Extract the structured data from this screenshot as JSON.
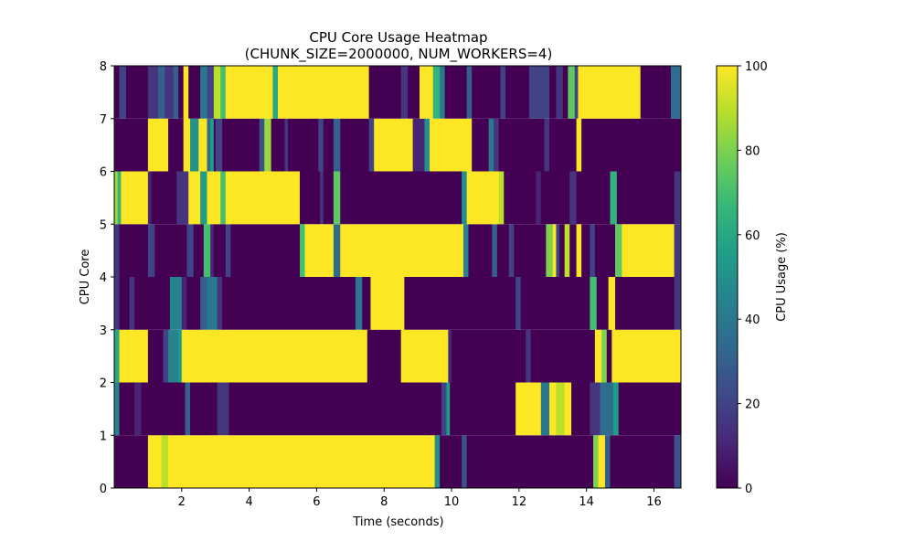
{
  "chart_data": {
    "type": "heatmap",
    "title": "CPU Core Usage Heatmap",
    "subtitle": "(CHUNK_SIZE=2000000, NUM_WORKERS=4)",
    "xlabel": "Time (seconds)",
    "ylabel": "CPU Core",
    "xlim": [
      0.0,
      16.8
    ],
    "ylim": [
      0,
      8
    ],
    "xticks": [
      2,
      4,
      6,
      8,
      10,
      12,
      14,
      16
    ],
    "yticks": [
      0,
      1,
      2,
      3,
      4,
      5,
      6,
      7,
      8
    ],
    "grid": false,
    "colormap": "viridis",
    "colorbar": {
      "label": "CPU Usage (%)",
      "range": [
        0,
        100
      ],
      "ticks": [
        0,
        20,
        40,
        60,
        80,
        100
      ]
    },
    "cores": [
      {
        "core": 0,
        "segments": [
          [
            0.0,
            1.0,
            0
          ],
          [
            1.0,
            1.4,
            100
          ],
          [
            1.4,
            1.6,
            90
          ],
          [
            1.6,
            9.5,
            100
          ],
          [
            9.5,
            9.65,
            50
          ],
          [
            9.65,
            10.3,
            0
          ],
          [
            10.3,
            10.45,
            25
          ],
          [
            10.45,
            14.2,
            0
          ],
          [
            14.2,
            14.35,
            80
          ],
          [
            14.35,
            14.55,
            100
          ],
          [
            14.55,
            14.7,
            30
          ],
          [
            14.7,
            16.6,
            0
          ],
          [
            16.6,
            16.8,
            25
          ]
        ]
      },
      {
        "core": 1,
        "segments": [
          [
            0.0,
            0.15,
            45
          ],
          [
            0.15,
            0.6,
            0
          ],
          [
            0.6,
            0.8,
            10
          ],
          [
            0.8,
            2.1,
            0
          ],
          [
            2.1,
            2.25,
            30
          ],
          [
            2.25,
            3.05,
            0
          ],
          [
            3.05,
            3.4,
            15
          ],
          [
            3.4,
            9.7,
            0
          ],
          [
            9.7,
            9.85,
            20
          ],
          [
            9.85,
            9.95,
            55
          ],
          [
            9.95,
            11.9,
            0
          ],
          [
            11.9,
            12.65,
            100
          ],
          [
            12.65,
            12.9,
            40
          ],
          [
            12.9,
            13.1,
            100
          ],
          [
            13.1,
            13.35,
            90
          ],
          [
            13.35,
            13.55,
            100
          ],
          [
            13.55,
            14.1,
            0
          ],
          [
            14.1,
            14.4,
            15
          ],
          [
            14.4,
            14.8,
            35
          ],
          [
            14.8,
            14.95,
            55
          ],
          [
            14.95,
            16.8,
            0
          ]
        ]
      },
      {
        "core": 2,
        "segments": [
          [
            0.0,
            0.15,
            60
          ],
          [
            0.15,
            1.0,
            100
          ],
          [
            1.0,
            1.45,
            0
          ],
          [
            1.45,
            1.6,
            20
          ],
          [
            1.6,
            1.9,
            45
          ],
          [
            1.9,
            2.0,
            55
          ],
          [
            2.0,
            7.5,
            100
          ],
          [
            7.5,
            8.5,
            0
          ],
          [
            8.5,
            9.9,
            100
          ],
          [
            9.9,
            10.0,
            10
          ],
          [
            10.0,
            12.2,
            0
          ],
          [
            12.2,
            12.35,
            15
          ],
          [
            12.35,
            14.25,
            0
          ],
          [
            14.25,
            14.45,
            100
          ],
          [
            14.45,
            14.6,
            80
          ],
          [
            14.6,
            14.75,
            0
          ],
          [
            14.75,
            16.8,
            100
          ]
        ]
      },
      {
        "core": 3,
        "segments": [
          [
            0.0,
            0.15,
            15
          ],
          [
            0.15,
            0.45,
            0
          ],
          [
            0.45,
            0.6,
            15
          ],
          [
            0.6,
            1.65,
            0
          ],
          [
            1.65,
            2.0,
            45
          ],
          [
            2.0,
            2.15,
            10
          ],
          [
            2.15,
            2.55,
            0
          ],
          [
            2.55,
            2.75,
            30
          ],
          [
            2.75,
            3.05,
            40
          ],
          [
            3.05,
            3.2,
            15
          ],
          [
            3.2,
            7.15,
            0
          ],
          [
            7.15,
            7.35,
            40
          ],
          [
            7.35,
            7.6,
            0
          ],
          [
            7.6,
            8.6,
            100
          ],
          [
            8.6,
            11.9,
            0
          ],
          [
            11.9,
            12.05,
            20
          ],
          [
            12.05,
            14.1,
            0
          ],
          [
            14.1,
            14.3,
            70
          ],
          [
            14.3,
            14.65,
            0
          ],
          [
            14.65,
            14.85,
            100
          ],
          [
            14.85,
            16.6,
            0
          ],
          [
            16.6,
            16.8,
            15
          ]
        ]
      },
      {
        "core": 4,
        "segments": [
          [
            0.0,
            0.15,
            15
          ],
          [
            0.15,
            1.0,
            0
          ],
          [
            1.0,
            1.2,
            20
          ],
          [
            1.2,
            2.15,
            0
          ],
          [
            2.15,
            2.35,
            20
          ],
          [
            2.35,
            2.65,
            0
          ],
          [
            2.65,
            2.85,
            70
          ],
          [
            2.85,
            2.95,
            10
          ],
          [
            2.95,
            3.3,
            0
          ],
          [
            3.3,
            3.45,
            20
          ],
          [
            3.45,
            5.5,
            0
          ],
          [
            5.5,
            5.65,
            70
          ],
          [
            5.65,
            6.5,
            100
          ],
          [
            6.5,
            6.7,
            35
          ],
          [
            6.7,
            10.35,
            100
          ],
          [
            10.35,
            10.5,
            45
          ],
          [
            10.5,
            11.2,
            0
          ],
          [
            11.2,
            11.35,
            30
          ],
          [
            11.35,
            11.7,
            0
          ],
          [
            11.7,
            11.85,
            20
          ],
          [
            11.85,
            12.8,
            0
          ],
          [
            12.8,
            13.0,
            80
          ],
          [
            13.0,
            13.1,
            100
          ],
          [
            13.1,
            13.2,
            20
          ],
          [
            13.2,
            13.35,
            0
          ],
          [
            13.35,
            13.5,
            90
          ],
          [
            13.5,
            13.7,
            0
          ],
          [
            13.7,
            13.85,
            100
          ],
          [
            13.85,
            14.1,
            0
          ],
          [
            14.1,
            14.25,
            20
          ],
          [
            14.25,
            14.85,
            0
          ],
          [
            14.85,
            15.05,
            75
          ],
          [
            15.05,
            16.6,
            100
          ],
          [
            16.6,
            16.8,
            15
          ]
        ]
      },
      {
        "core": 5,
        "segments": [
          [
            0.0,
            0.1,
            85
          ],
          [
            0.1,
            0.2,
            65
          ],
          [
            0.2,
            1.0,
            100
          ],
          [
            1.0,
            1.1,
            10
          ],
          [
            1.1,
            1.85,
            0
          ],
          [
            1.85,
            2.2,
            15
          ],
          [
            2.2,
            2.55,
            100
          ],
          [
            2.55,
            2.75,
            55
          ],
          [
            2.75,
            3.15,
            100
          ],
          [
            3.15,
            3.3,
            70
          ],
          [
            3.3,
            5.5,
            100
          ],
          [
            5.5,
            6.1,
            0
          ],
          [
            6.1,
            6.2,
            15
          ],
          [
            6.2,
            6.5,
            0
          ],
          [
            6.5,
            6.7,
            75
          ],
          [
            6.7,
            10.3,
            0
          ],
          [
            10.3,
            10.45,
            50
          ],
          [
            10.45,
            11.4,
            100
          ],
          [
            11.4,
            11.55,
            90
          ],
          [
            11.55,
            12.5,
            0
          ],
          [
            12.5,
            12.65,
            10
          ],
          [
            12.65,
            13.5,
            0
          ],
          [
            13.5,
            13.7,
            15
          ],
          [
            13.7,
            14.7,
            0
          ],
          [
            14.7,
            14.9,
            65
          ],
          [
            14.9,
            16.6,
            0
          ],
          [
            16.6,
            16.8,
            15
          ]
        ]
      },
      {
        "core": 6,
        "segments": [
          [
            0.0,
            1.0,
            0
          ],
          [
            1.0,
            1.6,
            100
          ],
          [
            1.6,
            2.05,
            0
          ],
          [
            2.05,
            2.25,
            100
          ],
          [
            2.25,
            2.5,
            50
          ],
          [
            2.5,
            2.75,
            100
          ],
          [
            2.75,
            2.85,
            35
          ],
          [
            2.85,
            2.95,
            55
          ],
          [
            2.95,
            3.0,
            0
          ],
          [
            3.0,
            3.2,
            20
          ],
          [
            3.2,
            4.3,
            0
          ],
          [
            4.3,
            4.45,
            25
          ],
          [
            4.45,
            4.65,
            85
          ],
          [
            4.65,
            5.05,
            0
          ],
          [
            5.05,
            5.15,
            15
          ],
          [
            5.15,
            6.05,
            0
          ],
          [
            6.05,
            6.2,
            20
          ],
          [
            6.2,
            6.5,
            0
          ],
          [
            6.5,
            6.7,
            30
          ],
          [
            6.7,
            7.55,
            0
          ],
          [
            7.55,
            7.7,
            20
          ],
          [
            7.7,
            8.85,
            100
          ],
          [
            8.85,
            9.2,
            10
          ],
          [
            9.2,
            9.35,
            50
          ],
          [
            9.35,
            10.6,
            100
          ],
          [
            10.6,
            11.1,
            0
          ],
          [
            11.1,
            11.25,
            40
          ],
          [
            11.25,
            11.4,
            15
          ],
          [
            11.4,
            12.75,
            0
          ],
          [
            12.75,
            12.9,
            15
          ],
          [
            12.9,
            13.7,
            0
          ],
          [
            13.7,
            13.85,
            100
          ],
          [
            13.85,
            16.8,
            0
          ]
        ]
      },
      {
        "core": 7,
        "segments": [
          [
            0.0,
            0.15,
            0
          ],
          [
            0.15,
            0.35,
            20
          ],
          [
            0.35,
            1.0,
            0
          ],
          [
            1.0,
            1.3,
            15
          ],
          [
            1.3,
            1.5,
            30
          ],
          [
            1.5,
            1.75,
            15
          ],
          [
            1.75,
            1.9,
            30
          ],
          [
            1.9,
            2.05,
            0
          ],
          [
            2.05,
            2.2,
            100
          ],
          [
            2.2,
            2.55,
            0
          ],
          [
            2.55,
            2.75,
            40
          ],
          [
            2.75,
            2.95,
            20
          ],
          [
            2.95,
            3.15,
            90
          ],
          [
            3.15,
            3.3,
            70
          ],
          [
            3.3,
            4.7,
            100
          ],
          [
            4.7,
            4.85,
            60
          ],
          [
            4.85,
            7.55,
            100
          ],
          [
            7.55,
            8.5,
            0
          ],
          [
            8.5,
            8.7,
            15
          ],
          [
            8.7,
            9.05,
            0
          ],
          [
            9.05,
            9.45,
            100
          ],
          [
            9.45,
            9.65,
            65
          ],
          [
            9.65,
            9.8,
            40
          ],
          [
            9.8,
            10.45,
            0
          ],
          [
            10.45,
            10.6,
            30
          ],
          [
            10.6,
            11.45,
            0
          ],
          [
            11.45,
            11.6,
            20
          ],
          [
            11.6,
            12.3,
            0
          ],
          [
            12.3,
            12.9,
            20
          ],
          [
            12.9,
            13.1,
            0
          ],
          [
            13.1,
            13.3,
            15
          ],
          [
            13.3,
            13.45,
            0
          ],
          [
            13.45,
            13.65,
            75
          ],
          [
            13.65,
            13.75,
            20
          ],
          [
            13.75,
            15.6,
            100
          ],
          [
            15.6,
            16.5,
            0
          ],
          [
            16.5,
            16.8,
            35
          ]
        ]
      }
    ]
  }
}
